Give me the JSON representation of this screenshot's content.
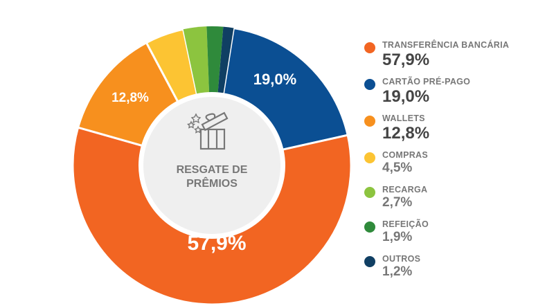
{
  "chart_data": {
    "type": "pie",
    "donut": true,
    "center_label": [
      "RESGATE DE",
      "PRÊMIOS"
    ],
    "slices": [
      {
        "label": "CARTÃO PRÉ-PAGO",
        "value": 19.0,
        "display": "19,0%",
        "color": "#0b4f93"
      },
      {
        "label": "TRANSFERÊNCIA BANCÁRIA",
        "value": 57.9,
        "display": "57,9%",
        "color": "#f26522"
      },
      {
        "label": "WALLETS",
        "value": 12.8,
        "display": "12,8%",
        "color": "#f7901e"
      },
      {
        "label": "COMPRAS",
        "value": 4.5,
        "display": "4,5%",
        "color": "#fcc433"
      },
      {
        "label": "RECARGA",
        "value": 2.7,
        "display": "2,7%",
        "color": "#8cc43f"
      },
      {
        "label": "REFEIÇÃO",
        "value": 1.9,
        "display": "1,9%",
        "color": "#2f8a3b"
      },
      {
        "label": "OUTROS",
        "value": 1.2,
        "display": "1,2%",
        "color": "#103f63"
      }
    ],
    "legend": [
      {
        "label": "TRANSFERÊNCIA BANCÁRIA",
        "display": "57,9%",
        "color": "#f26522"
      },
      {
        "label": "CARTÃO PRÉ-PAGO",
        "display": "19,0%",
        "color": "#0b4f93"
      },
      {
        "label": "WALLETS",
        "display": "12,8%",
        "color": "#f7901e"
      },
      {
        "label": "COMPRAS",
        "display": "4,5%",
        "color": "#fcc433"
      },
      {
        "label": "RECARGA",
        "display": "2,7%",
        "color": "#8cc43f"
      },
      {
        "label": "REFEIÇÃO",
        "display": "1,9%",
        "color": "#2f8a3b"
      },
      {
        "label": "OUTROS",
        "display": "1,2%",
        "color": "#103f63"
      }
    ],
    "legend_position": "right"
  }
}
